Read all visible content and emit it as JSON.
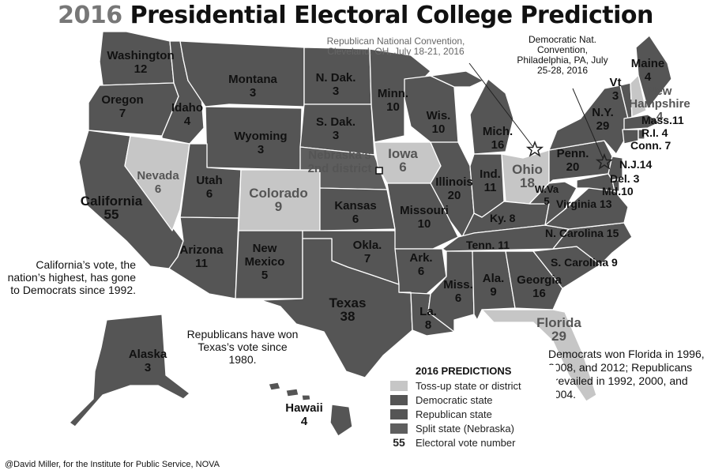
{
  "title": {
    "year": "2016",
    "rest": " Presidential Electoral College Prediction"
  },
  "colors": {
    "toss_up": "#c6c6c6",
    "democratic": "#555555",
    "republican": "#555555",
    "split": "#5e5e5e",
    "border": "#ffffff",
    "water": "#ffffff"
  },
  "states": {
    "washington": {
      "name": "Washington",
      "votes": "12"
    },
    "oregon": {
      "name": "Oregon",
      "votes": "7"
    },
    "california": {
      "name": "California",
      "votes": "55"
    },
    "idaho": {
      "name": "Idaho",
      "votes": "4"
    },
    "nevada": {
      "name": "Nevada",
      "votes": "6"
    },
    "montana": {
      "name": "Montana",
      "votes": "3"
    },
    "wyoming": {
      "name": "Wyoming",
      "votes": "3"
    },
    "utah": {
      "name": "Utah",
      "votes": "6"
    },
    "colorado": {
      "name": "Colorado",
      "votes": "9"
    },
    "arizona": {
      "name": "Arizona",
      "votes": "11"
    },
    "new_mexico": {
      "name": "New Mexico",
      "votes": "5"
    },
    "north_dakota": {
      "name": "N. Dak.",
      "votes": "3"
    },
    "south_dakota": {
      "name": "S. Dak.",
      "votes": "3"
    },
    "nebraska": {
      "name": "Nebraska's 2nd district"
    },
    "kansas": {
      "name": "Kansas",
      "votes": "6"
    },
    "oklahoma": {
      "name": "Okla.",
      "votes": "7"
    },
    "texas": {
      "name": "Texas",
      "votes": "38"
    },
    "minnesota": {
      "name": "Minn.",
      "votes": "10"
    },
    "iowa": {
      "name": "Iowa",
      "votes": "6"
    },
    "missouri": {
      "name": "Missouri",
      "votes": "10"
    },
    "arkansas": {
      "name": "Ark.",
      "votes": "6"
    },
    "louisiana": {
      "name": "La.",
      "votes": "8"
    },
    "wisconsin": {
      "name": "Wis.",
      "votes": "10"
    },
    "illinois": {
      "name": "Illinois",
      "votes": "20"
    },
    "michigan": {
      "name": "Mich.",
      "votes": "16"
    },
    "indiana": {
      "name": "Ind.",
      "votes": "11"
    },
    "ohio": {
      "name": "Ohio",
      "votes": "18"
    },
    "kentucky": {
      "name": "Ky.",
      "votes": "8"
    },
    "tennessee": {
      "name": "Tenn.",
      "votes": "11"
    },
    "mississippi": {
      "name": "Miss.",
      "votes": "6"
    },
    "alabama": {
      "name": "Ala.",
      "votes": "9"
    },
    "georgia": {
      "name": "Georgia",
      "votes": "16"
    },
    "florida": {
      "name": "Florida",
      "votes": "29"
    },
    "south_carolina": {
      "name": "S. Carolina",
      "votes": "9"
    },
    "north_carolina": {
      "name": "N. Carolina",
      "votes": "15"
    },
    "virginia": {
      "name": "Virginia",
      "votes": "13"
    },
    "west_virginia": {
      "name": "W.Va",
      "votes": "5"
    },
    "pennsylvania": {
      "name": "Penn.",
      "votes": "20"
    },
    "new_york": {
      "name": "N.Y.",
      "votes": "29"
    },
    "vermont": {
      "name": "Vt",
      "votes": "3"
    },
    "new_hampshire": {
      "name": "New Hampshire",
      "votes": "4"
    },
    "maine": {
      "name": "Maine",
      "votes": "4"
    },
    "massachusetts": {
      "label": "Mass.11"
    },
    "rhode_island": {
      "label": "R.I. 4"
    },
    "connecticut": {
      "label": "Conn. 7"
    },
    "new_jersey": {
      "label": "N.J.14"
    },
    "delaware": {
      "label": "Del. 3"
    },
    "maryland": {
      "label": "Md.10"
    },
    "alaska": {
      "name": "Alaska",
      "votes": "3"
    },
    "hawaii": {
      "name": "Hawaii",
      "votes": "4"
    }
  },
  "notes": {
    "california": "California’s vote, the nation’s highest, has gone to Democrats since 1992.",
    "texas": "Republicans have won Texas’s vote since 1980.",
    "florida": "Democrats won Florida in 1996, 2008, and 2012; Republicans prevailed in 1992, 2000, and 2004."
  },
  "conventions": {
    "republican": "Republican National Convention, Cleveland, OH, July 18-21, 2016",
    "democratic": "Democratic Nat. Convention, Philadelphia, PA, July 25-28, 2016"
  },
  "legend": {
    "title": "2016 PREDICTIONS",
    "items": [
      {
        "label": "Toss-up state or district"
      },
      {
        "label": "Democratic state"
      },
      {
        "label": "Republican state"
      },
      {
        "label": "Split state (Nebraska)"
      },
      {
        "symbol": "55",
        "label": "Electoral vote number"
      }
    ]
  },
  "credit": "@David Miller, for the Institute for Public Service, NOVA"
}
